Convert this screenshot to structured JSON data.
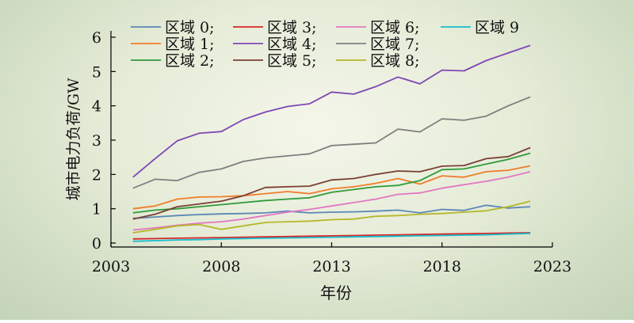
{
  "chart_data": {
    "type": "line",
    "title": "",
    "xlabel": "年份",
    "ylabel": "城市电力负荷/GW",
    "xlim": [
      2003,
      2023
    ],
    "ylim": [
      0,
      6
    ],
    "x_ticks": [
      2003,
      2008,
      2013,
      2018,
      2023
    ],
    "y_ticks": [
      0,
      1,
      2,
      3,
      4,
      5,
      6
    ],
    "grid": false,
    "legend": "top, 4 columns",
    "x": [
      2004,
      2005,
      2006,
      2007,
      2008,
      2009,
      2010,
      2011,
      2012,
      2013,
      2014,
      2015,
      2016,
      2017,
      2018,
      2019,
      2020,
      2021,
      2022
    ],
    "series": [
      {
        "name": "区域 0",
        "legend_label": "区域 0;",
        "color": "#5b87b7",
        "values": [
          0.72,
          0.76,
          0.8,
          0.83,
          0.85,
          0.86,
          0.88,
          0.93,
          0.88,
          0.9,
          0.91,
          0.93,
          0.96,
          0.88,
          0.98,
          0.95,
          1.1,
          1.02,
          1.06
        ]
      },
      {
        "name": "区域 1",
        "legend_label": "区域 1;",
        "color": "#f07d2b",
        "values": [
          1.0,
          1.08,
          1.28,
          1.34,
          1.35,
          1.38,
          1.44,
          1.5,
          1.44,
          1.58,
          1.64,
          1.74,
          1.88,
          1.72,
          1.96,
          1.92,
          2.08,
          2.12,
          2.25
        ]
      },
      {
        "name": "区域 2",
        "legend_label": "区域 2;",
        "color": "#2f9b3a",
        "values": [
          0.88,
          0.96,
          1.0,
          1.06,
          1.12,
          1.18,
          1.24,
          1.28,
          1.32,
          1.48,
          1.56,
          1.64,
          1.68,
          1.82,
          2.14,
          2.16,
          2.3,
          2.44,
          2.62
        ]
      },
      {
        "name": "区域 3",
        "legend_label": "区域 3;",
        "color": "#d62728",
        "values": [
          0.12,
          0.13,
          0.14,
          0.15,
          0.16,
          0.17,
          0.18,
          0.19,
          0.2,
          0.21,
          0.22,
          0.23,
          0.24,
          0.25,
          0.26,
          0.27,
          0.28,
          0.29,
          0.3
        ]
      },
      {
        "name": "区域 4",
        "legend_label": "区域 4;",
        "color": "#7e47b5",
        "values": [
          1.92,
          2.46,
          2.98,
          3.2,
          3.25,
          3.6,
          3.82,
          3.98,
          4.06,
          4.4,
          4.34,
          4.56,
          4.84,
          4.64,
          5.04,
          5.02,
          5.32,
          5.54,
          5.76
        ]
      },
      {
        "name": "区域 5",
        "legend_label": "区域 5;",
        "color": "#7b3f36",
        "values": [
          0.7,
          0.84,
          1.06,
          1.14,
          1.22,
          1.38,
          1.62,
          1.64,
          1.66,
          1.84,
          1.88,
          2.0,
          2.1,
          2.08,
          2.24,
          2.26,
          2.46,
          2.52,
          2.78
        ]
      },
      {
        "name": "区域 6",
        "legend_label": "区域 6;",
        "color": "#e377c2",
        "values": [
          0.38,
          0.44,
          0.52,
          0.58,
          0.62,
          0.7,
          0.8,
          0.9,
          0.98,
          1.08,
          1.18,
          1.28,
          1.42,
          1.46,
          1.6,
          1.7,
          1.8,
          1.92,
          2.08
        ]
      },
      {
        "name": "区域 7",
        "legend_label": "区域 7;",
        "color": "#7f7f7f",
        "values": [
          1.6,
          1.86,
          1.82,
          2.06,
          2.16,
          2.38,
          2.48,
          2.54,
          2.6,
          2.84,
          2.88,
          2.92,
          3.32,
          3.24,
          3.62,
          3.58,
          3.7,
          4.0,
          4.26
        ]
      },
      {
        "name": "区域 8",
        "legend_label": "区域 8;",
        "color": "#b5b82a",
        "values": [
          0.3,
          0.4,
          0.5,
          0.54,
          0.4,
          0.5,
          0.6,
          0.62,
          0.64,
          0.68,
          0.7,
          0.78,
          0.8,
          0.84,
          0.86,
          0.9,
          0.94,
          1.06,
          1.22
        ]
      },
      {
        "name": "区域 9",
        "legend_label": "区域 9",
        "color": "#17becf",
        "values": [
          0.05,
          0.07,
          0.09,
          0.1,
          0.12,
          0.13,
          0.14,
          0.15,
          0.16,
          0.17,
          0.18,
          0.19,
          0.2,
          0.21,
          0.22,
          0.23,
          0.24,
          0.26,
          0.28
        ]
      }
    ]
  }
}
